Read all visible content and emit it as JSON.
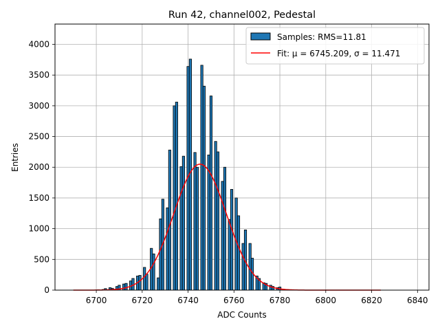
{
  "chart_data": {
    "type": "bar",
    "title": "Run 42, channel002, Pedestal",
    "xlabel": "ADC Counts",
    "ylabel": "Entries",
    "xlim": [
      6682,
      6845
    ],
    "ylim": [
      0,
      4330
    ],
    "xticks": [
      6700,
      6720,
      6740,
      6760,
      6780,
      6800,
      6820,
      6840
    ],
    "yticks": [
      0,
      500,
      1000,
      1500,
      2000,
      2500,
      3000,
      3500,
      4000
    ],
    "grid": true,
    "legend_position": "top-right",
    "bin_width": 1,
    "series": [
      {
        "name": "Samples: RMS=11.81",
        "kind": "histogram",
        "color": "#1f77b4",
        "edgecolor": "#000000",
        "x": [
          6701,
          6702,
          6703,
          6704,
          6705,
          6706,
          6707,
          6708,
          6709,
          6710,
          6711,
          6712,
          6713,
          6714,
          6715,
          6716,
          6717,
          6718,
          6719,
          6720,
          6721,
          6722,
          6723,
          6724,
          6725,
          6726,
          6727,
          6728,
          6729,
          6730,
          6731,
          6732,
          6733,
          6734,
          6735,
          6736,
          6737,
          6738,
          6739,
          6740,
          6741,
          6742,
          6743,
          6744,
          6745,
          6746,
          6747,
          6748,
          6749,
          6750,
          6751,
          6752,
          6753,
          6754,
          6755,
          6756,
          6757,
          6758,
          6759,
          6760,
          6761,
          6762,
          6763,
          6764,
          6765,
          6766,
          6767,
          6768,
          6769,
          6770,
          6771,
          6772,
          6773,
          6774,
          6775,
          6776,
          6777,
          6778,
          6779,
          6780
        ],
        "values": [
          5,
          0,
          10,
          25,
          0,
          40,
          30,
          0,
          60,
          80,
          0,
          100,
          110,
          0,
          150,
          190,
          0,
          230,
          240,
          0,
          370,
          260,
          0,
          680,
          590,
          0,
          200,
          1160,
          1480,
          0,
          1340,
          2280,
          0,
          3000,
          3060,
          0,
          2010,
          2180,
          0,
          3640,
          3760,
          0,
          2240,
          2000,
          0,
          3660,
          3320,
          0,
          2200,
          3160,
          0,
          2420,
          2250,
          0,
          1770,
          2000,
          0,
          1150,
          1640,
          0,
          1500,
          1210,
          0,
          760,
          980,
          0,
          760,
          520,
          0,
          230,
          190,
          0,
          120,
          110,
          0,
          80,
          60,
          0,
          40,
          50
        ]
      },
      {
        "name": "Fit: μ = 6745.209, σ = 11.471",
        "kind": "gaussian",
        "color": "#ff0000",
        "mu": 6745.209,
        "sigma": 11.471,
        "amplitude": 2050,
        "x_range": [
          6690,
          6824
        ]
      }
    ]
  }
}
